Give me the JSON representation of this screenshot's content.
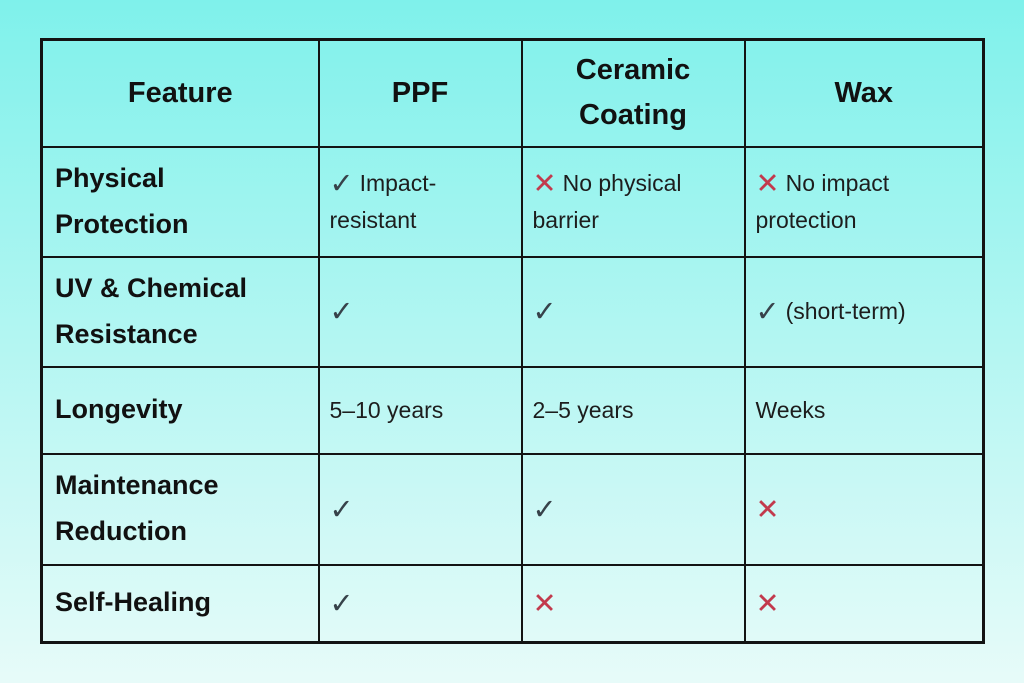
{
  "colors": {
    "background_top": "#7FF1EB",
    "background_bottom": "#E7FBF9",
    "border": "#131313",
    "heading_text": "#111111",
    "body_text": "#1D1D1D",
    "check_icon": "#37424A",
    "cross_icon": "#C23A4D"
  },
  "table": {
    "columns": [
      "Feature",
      "PPF",
      "Ceramic Coating",
      "Wax"
    ],
    "rows": [
      {
        "feature": "Physical Protection",
        "cells": [
          {
            "type": "check",
            "icon": "✓",
            "text": "Impact-resistant"
          },
          {
            "type": "cross",
            "icon": "✕",
            "text": "No physical barrier"
          },
          {
            "type": "cross",
            "icon": "✕",
            "text": "No impact protection"
          }
        ]
      },
      {
        "feature": "UV & Chemical Resistance",
        "cells": [
          {
            "type": "check",
            "icon": "✓",
            "text": ""
          },
          {
            "type": "check",
            "icon": "✓",
            "text": ""
          },
          {
            "type": "check",
            "icon": "✓",
            "text": "(short-term)"
          }
        ]
      },
      {
        "feature": "Longevity",
        "cells": [
          {
            "type": "none",
            "icon": "",
            "text": "5–10 years"
          },
          {
            "type": "none",
            "icon": "",
            "text": "2–5 years"
          },
          {
            "type": "none",
            "icon": "",
            "text": "Weeks"
          }
        ]
      },
      {
        "feature": "Maintenance Reduction",
        "cells": [
          {
            "type": "check",
            "icon": "✓",
            "text": ""
          },
          {
            "type": "check",
            "icon": "✓",
            "text": ""
          },
          {
            "type": "cross",
            "icon": "✕",
            "text": ""
          }
        ]
      },
      {
        "feature": "Self-Healing",
        "cells": [
          {
            "type": "check",
            "icon": "✓",
            "text": ""
          },
          {
            "type": "cross",
            "icon": "✕",
            "text": ""
          },
          {
            "type": "cross",
            "icon": "✕",
            "text": ""
          }
        ]
      }
    ]
  }
}
